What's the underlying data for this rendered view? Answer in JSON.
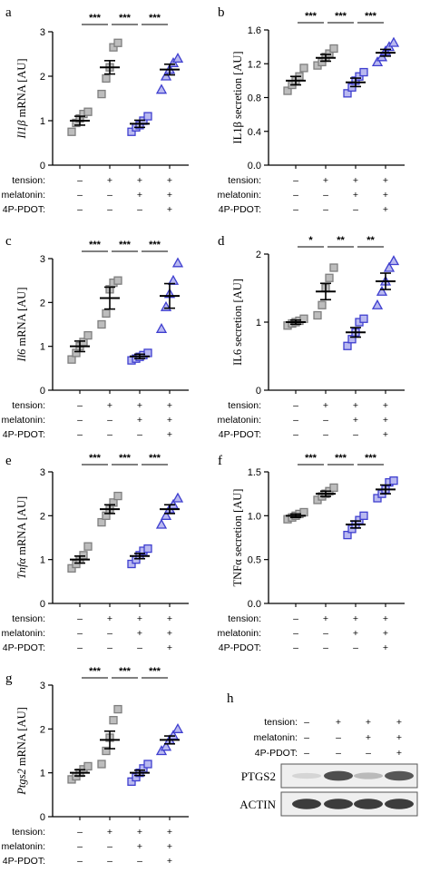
{
  "colors": {
    "axis": "#000000",
    "gray_fill": "#bdbdbd",
    "gray_edge": "#7f7f7f",
    "blue_fill": "#b9b9f0",
    "blue_edge": "#3f3fcf",
    "mean_bar": "#000000"
  },
  "conditions": {
    "labels": [
      "tension:",
      "melatonin:",
      "4P-PDOT:"
    ],
    "tension": [
      "–",
      "+",
      "+",
      "+"
    ],
    "melatonin": [
      "–",
      "–",
      "+",
      "+"
    ],
    "pdot": [
      "–",
      "–",
      "–",
      "+"
    ]
  },
  "chart_data": [
    {
      "panel": "a",
      "type": "scatter",
      "ylabel_main": "mRNA [AU]",
      "ylabel_italic": "Il1β",
      "ylim": [
        0,
        3
      ],
      "yticks": [
        0,
        1,
        2,
        3
      ],
      "markers": [
        "square",
        "square",
        "square",
        "triangle"
      ],
      "groups": [
        {
          "mean": 1.0,
          "sem": 0.1,
          "points": [
            0.75,
            0.95,
            1.05,
            1.15,
            1.2
          ]
        },
        {
          "mean": 2.2,
          "sem": 0.15,
          "points": [
            1.6,
            1.95,
            2.2,
            2.65,
            2.75
          ]
        },
        {
          "mean": 0.93,
          "sem": 0.08,
          "points": [
            0.75,
            0.85,
            0.9,
            1.0,
            1.1
          ]
        },
        {
          "mean": 2.15,
          "sem": 0.12,
          "points": [
            1.7,
            2.0,
            2.15,
            2.3,
            2.4
          ]
        }
      ],
      "significance": [
        "***",
        "***",
        "***"
      ]
    },
    {
      "panel": "b",
      "type": "scatter",
      "ylabel_main": "IL1β secretion [AU]",
      "ylabel_italic": "",
      "ylim": [
        0,
        1.6
      ],
      "yticks": [
        0.0,
        0.4,
        0.8,
        1.2,
        1.6
      ],
      "markers": [
        "square",
        "square",
        "square",
        "triangle"
      ],
      "groups": [
        {
          "mean": 1.0,
          "sem": 0.05,
          "points": [
            0.88,
            0.95,
            1.0,
            1.05,
            1.15
          ]
        },
        {
          "mean": 1.27,
          "sem": 0.04,
          "points": [
            1.18,
            1.22,
            1.28,
            1.32,
            1.38
          ]
        },
        {
          "mean": 0.98,
          "sem": 0.05,
          "points": [
            0.85,
            0.92,
            1.0,
            1.05,
            1.1
          ]
        },
        {
          "mean": 1.33,
          "sem": 0.04,
          "points": [
            1.22,
            1.28,
            1.35,
            1.4,
            1.45
          ]
        }
      ],
      "significance": [
        "***",
        "***",
        "***"
      ]
    },
    {
      "panel": "c",
      "type": "scatter",
      "ylabel_main": "mRNA [AU]",
      "ylabel_italic": "Il6",
      "ylim": [
        0,
        3
      ],
      "yticks": [
        0,
        1,
        2,
        3
      ],
      "markers": [
        "square",
        "square",
        "square",
        "triangle"
      ],
      "groups": [
        {
          "mean": 1.0,
          "sem": 0.12,
          "points": [
            0.7,
            0.85,
            1.0,
            1.1,
            1.25
          ]
        },
        {
          "mean": 2.1,
          "sem": 0.25,
          "points": [
            1.5,
            1.75,
            2.3,
            2.45,
            2.5
          ]
        },
        {
          "mean": 0.77,
          "sem": 0.05,
          "points": [
            0.68,
            0.72,
            0.76,
            0.8,
            0.85
          ]
        },
        {
          "mean": 2.15,
          "sem": 0.28,
          "points": [
            1.4,
            1.9,
            2.2,
            2.5,
            2.9
          ]
        }
      ],
      "significance": [
        "***",
        "***",
        "***"
      ]
    },
    {
      "panel": "d",
      "type": "scatter",
      "ylabel_main": "IL6 secretion [AU]",
      "ylabel_italic": "",
      "ylim": [
        0,
        2
      ],
      "yticks": [
        0,
        1,
        2
      ],
      "markers": [
        "square",
        "square",
        "square",
        "triangle"
      ],
      "groups": [
        {
          "mean": 1.0,
          "sem": 0.03,
          "points": [
            0.95,
            0.98,
            1.0,
            1.02,
            1.05
          ]
        },
        {
          "mean": 1.45,
          "sem": 0.12,
          "points": [
            1.1,
            1.25,
            1.5,
            1.65,
            1.8
          ]
        },
        {
          "mean": 0.85,
          "sem": 0.07,
          "points": [
            0.65,
            0.75,
            0.85,
            1.0,
            1.05
          ]
        },
        {
          "mean": 1.6,
          "sem": 0.12,
          "points": [
            1.25,
            1.45,
            1.6,
            1.8,
            1.9
          ]
        }
      ],
      "significance": [
        "*",
        "**",
        "**"
      ]
    },
    {
      "panel": "e",
      "type": "scatter",
      "ylabel_main": "mRNA [AU]",
      "ylabel_italic": "Tnfα",
      "ylim": [
        0,
        3
      ],
      "yticks": [
        0,
        1,
        2,
        3
      ],
      "markers": [
        "square",
        "square",
        "square",
        "triangle"
      ],
      "groups": [
        {
          "mean": 1.0,
          "sem": 0.08,
          "points": [
            0.8,
            0.9,
            1.0,
            1.1,
            1.3
          ]
        },
        {
          "mean": 2.15,
          "sem": 0.1,
          "points": [
            1.85,
            2.0,
            2.15,
            2.3,
            2.45
          ]
        },
        {
          "mean": 1.08,
          "sem": 0.06,
          "points": [
            0.9,
            1.0,
            1.1,
            1.2,
            1.25
          ]
        },
        {
          "mean": 2.15,
          "sem": 0.1,
          "points": [
            1.8,
            2.0,
            2.15,
            2.25,
            2.4
          ]
        }
      ],
      "significance": [
        "***",
        "***",
        "***"
      ]
    },
    {
      "panel": "f",
      "type": "scatter",
      "ylabel_main": "TNFα secretion [AU]",
      "ylabel_italic": "",
      "ylim": [
        0,
        1.5
      ],
      "yticks": [
        0.0,
        0.5,
        1.0,
        1.5
      ],
      "markers": [
        "square",
        "square",
        "square",
        "square"
      ],
      "groups": [
        {
          "mean": 1.0,
          "sem": 0.02,
          "points": [
            0.96,
            0.98,
            1.0,
            1.02,
            1.04
          ]
        },
        {
          "mean": 1.25,
          "sem": 0.03,
          "points": [
            1.18,
            1.22,
            1.25,
            1.28,
            1.32
          ]
        },
        {
          "mean": 0.9,
          "sem": 0.04,
          "points": [
            0.78,
            0.85,
            0.9,
            0.95,
            1.0
          ]
        },
        {
          "mean": 1.3,
          "sem": 0.05,
          "points": [
            1.2,
            1.25,
            1.3,
            1.38,
            1.4
          ]
        }
      ],
      "significance": [
        "***",
        "***",
        "***"
      ]
    },
    {
      "panel": "g",
      "type": "scatter",
      "ylabel_main": "mRNA [AU]",
      "ylabel_italic": "Ptgs2",
      "ylim": [
        0,
        3
      ],
      "yticks": [
        0,
        1,
        2,
        3
      ],
      "markers": [
        "square",
        "square",
        "square",
        "triangle"
      ],
      "groups": [
        {
          "mean": 1.0,
          "sem": 0.07,
          "points": [
            0.85,
            0.92,
            1.0,
            1.08,
            1.15
          ]
        },
        {
          "mean": 1.75,
          "sem": 0.2,
          "points": [
            1.2,
            1.5,
            1.8,
            2.2,
            2.45
          ]
        },
        {
          "mean": 1.0,
          "sem": 0.06,
          "points": [
            0.8,
            0.9,
            1.0,
            1.1,
            1.2
          ]
        },
        {
          "mean": 1.75,
          "sem": 0.09,
          "points": [
            1.5,
            1.6,
            1.75,
            1.85,
            2.0
          ]
        }
      ],
      "significance": [
        "***",
        "***",
        "***"
      ]
    }
  ],
  "blot": {
    "panel": "h",
    "rows": [
      "PTGS2",
      "ACTIN"
    ],
    "ptgs2_intensity": [
      0.05,
      0.8,
      0.2,
      0.75
    ],
    "actin_intensity": [
      0.9,
      0.9,
      0.9,
      0.9
    ]
  }
}
